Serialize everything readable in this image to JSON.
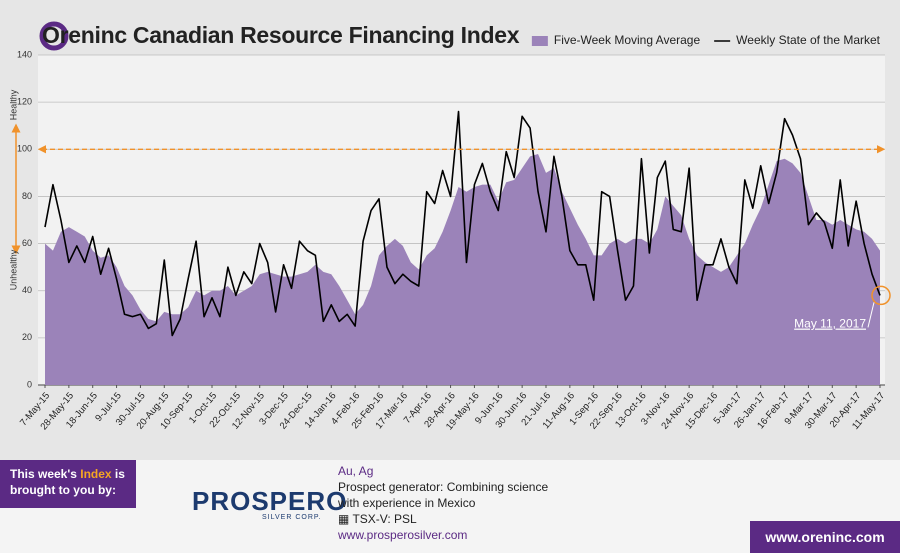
{
  "chart_data": {
    "type": "area-line",
    "title": "Oreninc Canadian Resource Financing Index",
    "categories": [
      "7-May-15",
      null,
      null,
      "28-May-15",
      null,
      null,
      "18-Jun-15",
      null,
      null,
      "9-Jul-15",
      null,
      null,
      "30-Jul-15",
      null,
      null,
      "20-Aug-15",
      null,
      null,
      "10-Sep-15",
      null,
      null,
      "1-Oct-15",
      null,
      null,
      "22-Oct-15",
      null,
      null,
      "12-Nov-15",
      null,
      null,
      "3-Dec-15",
      null,
      null,
      "24-Dec-15",
      null,
      null,
      "14-Jan-16",
      null,
      null,
      "4-Feb-16",
      null,
      null,
      "25-Feb-16",
      null,
      null,
      "17-Mar-16",
      null,
      null,
      "7-Apr-16",
      null,
      null,
      "28-Apr-16",
      null,
      null,
      "19-May-16",
      null,
      null,
      "9-Jun-16",
      null,
      null,
      "30-Jun-16",
      null,
      null,
      "21-Jul-16",
      null,
      null,
      "11-Aug-16",
      null,
      null,
      "1-Sep-16",
      null,
      null,
      "22-Sep-16",
      null,
      null,
      "13-Oct-16",
      null,
      null,
      "3-Nov-16",
      null,
      null,
      "24-Nov-16",
      null,
      null,
      "15-Dec-16",
      null,
      null,
      "5-Jan-17",
      null,
      null,
      "26-Jan-17",
      null,
      null,
      "16-Feb-17",
      null,
      null,
      "9-Mar-17",
      null,
      null,
      "30-Mar-17",
      null,
      null,
      "20-Apr-17",
      null,
      null,
      "11-May-17"
    ],
    "series": [
      {
        "name": "Five-Week Moving Average",
        "color": "#9b83b9",
        "style": "area",
        "values": [
          60,
          57,
          65,
          67,
          65,
          63,
          57,
          54,
          55,
          50,
          42,
          38,
          32,
          28,
          27,
          31,
          30,
          30,
          33,
          40,
          38,
          40,
          40,
          42,
          38,
          40,
          42,
          47,
          48,
          47,
          46,
          46,
          47,
          48,
          51,
          48,
          47,
          42,
          36,
          30,
          34,
          42,
          55,
          59,
          62,
          59,
          52,
          49,
          55,
          58,
          65,
          74,
          84,
          82,
          84,
          85,
          85,
          78,
          86,
          87,
          92,
          97,
          98,
          90,
          92,
          82,
          75,
          68,
          62,
          55,
          55,
          60,
          62,
          60,
          62,
          62,
          60,
          66,
          80,
          76,
          72,
          62,
          55,
          52,
          50,
          48,
          50,
          55,
          60,
          68,
          75,
          85,
          95,
          96,
          94,
          90,
          80,
          70,
          70,
          68,
          70,
          68,
          66,
          65,
          62,
          57
        ]
      },
      {
        "name": "Weekly State of the Market",
        "color": "#000000",
        "style": "line",
        "values": [
          67,
          85,
          70,
          52,
          59,
          52,
          63,
          47,
          58,
          45,
          30,
          29,
          30,
          24,
          26,
          53,
          21,
          28,
          45,
          61,
          29,
          37,
          29,
          50,
          38,
          48,
          43,
          60,
          52,
          31,
          51,
          41,
          61,
          57,
          55,
          27,
          34,
          27,
          30,
          25,
          61,
          74,
          79,
          50,
          43,
          47,
          44,
          42,
          82,
          77,
          91,
          80,
          116,
          52,
          85,
          94,
          82,
          74,
          99,
          88,
          114,
          109,
          82,
          65,
          97,
          80,
          57,
          51,
          51,
          36,
          82,
          80,
          57,
          36,
          42,
          96,
          56,
          88,
          95,
          66,
          65,
          92,
          36,
          51,
          51,
          62,
          50,
          43,
          87,
          75,
          93,
          77,
          90,
          113,
          106,
          96,
          68,
          73,
          69,
          58,
          87,
          59,
          78,
          60,
          47,
          38
        ]
      }
    ],
    "ylim": [
      0,
      140
    ],
    "yticks": [
      0,
      20,
      40,
      60,
      80,
      100,
      120,
      140
    ],
    "grid": true,
    "legend": "top-right",
    "reference_line": {
      "value": 100,
      "color": "#f0922b"
    },
    "axis_notes": {
      "upper": "Healthy",
      "lower": "Unhealthy"
    },
    "annotation": "May 11, 2017"
  },
  "footer": {
    "intro_before": "This week's",
    "intro_highlight": "Index",
    "intro_after": "is brought to you by:",
    "logo": "PROSPERO",
    "logo_sub": "SILVER CORP.",
    "metals": "Au, Ag",
    "description": "Prospect generator: Combining science with experience in Mexico",
    "exchange": "TSX-V:  PSL",
    "website": "www.prosperosilver.com",
    "brand_site": "www.oreninc.com"
  }
}
